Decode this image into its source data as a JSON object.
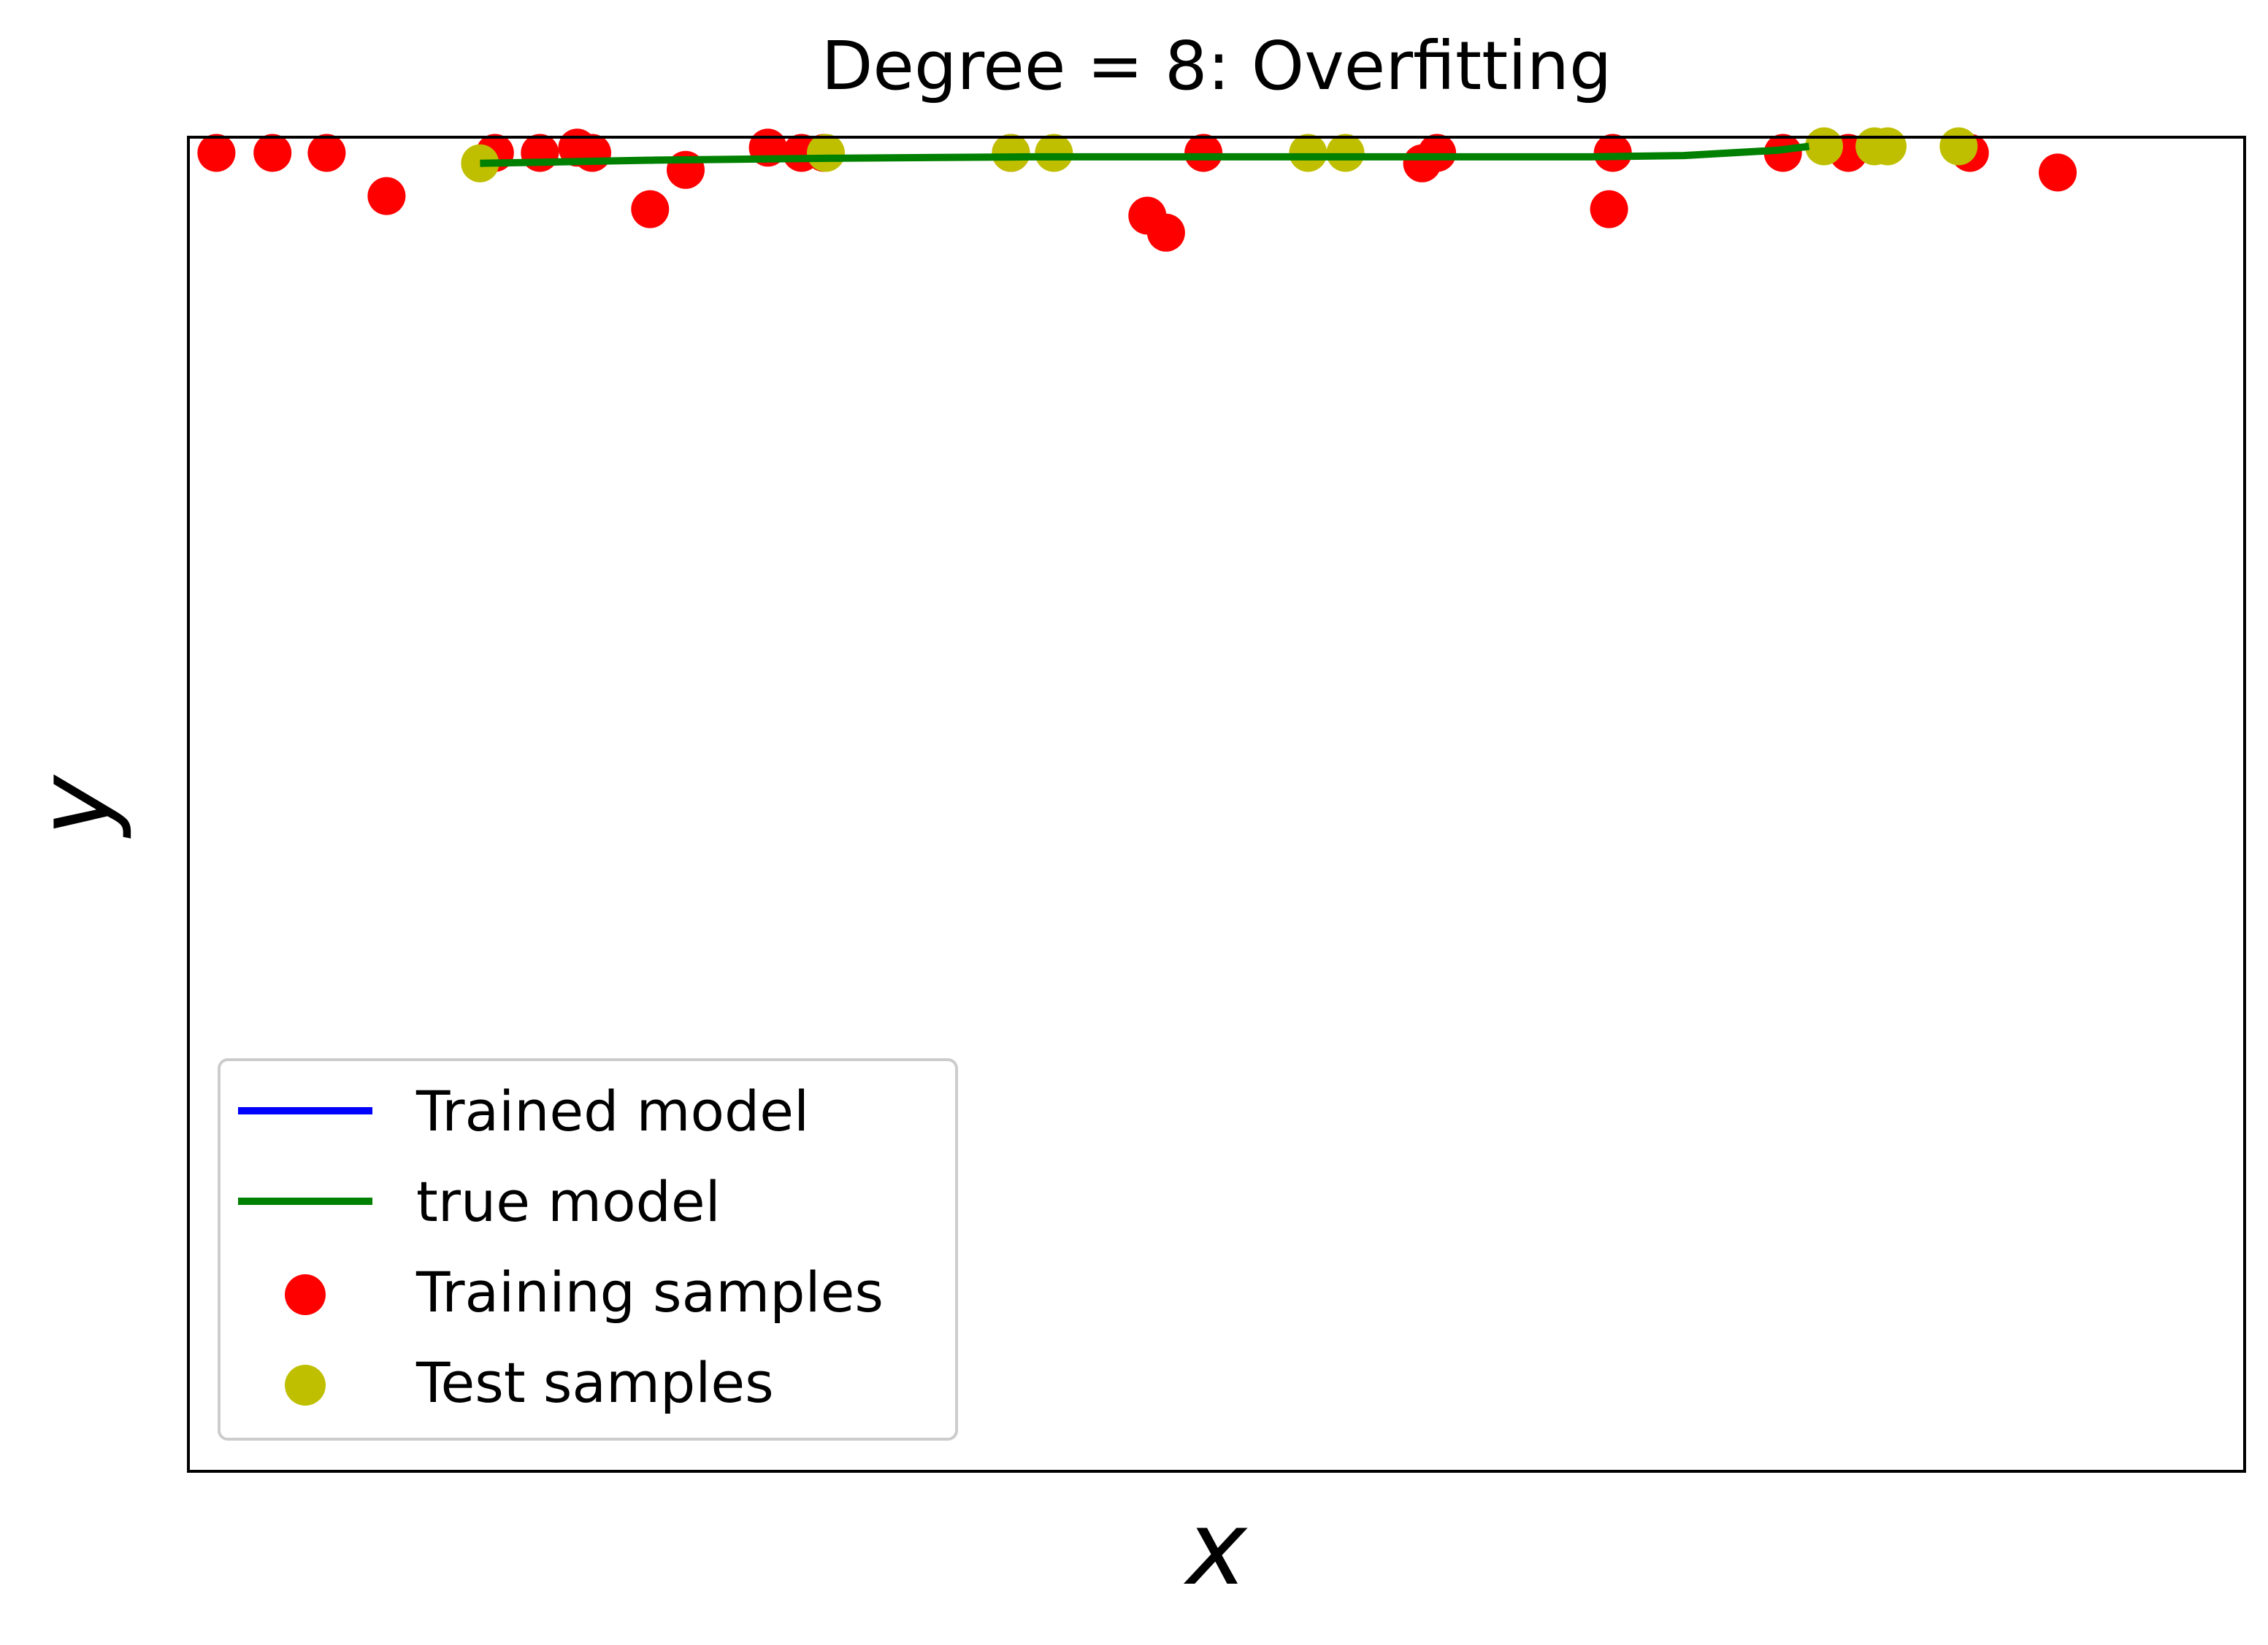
{
  "chart_data": {
    "type": "scatter",
    "title": "Degree = 8: Overfitting",
    "xlabel": "x",
    "ylabel": "y",
    "xlim": [
      0,
      1.1
    ],
    "ylim": [
      -10,
      0.2
    ],
    "xticks": "none",
    "yticks": "none",
    "grid": false,
    "legend_position": "lower-left",
    "colors": {
      "trained_model": "#0000ff",
      "true_model": "#008000",
      "training_samples": "#ff0000",
      "test_samples": "#bfbf00"
    },
    "series": [
      {
        "name": "Trained model",
        "kind": "line",
        "x": [],
        "y": []
      },
      {
        "name": "true model",
        "kind": "line",
        "x": [
          0.156,
          0.25,
          0.35,
          0.45,
          0.55,
          0.65,
          0.75,
          0.8,
          0.85,
          0.867
        ],
        "y": [
          0.0,
          0.025,
          0.04,
          0.05,
          0.05,
          0.05,
          0.05,
          0.06,
          0.1,
          0.13
        ]
      },
      {
        "name": "Training samples",
        "kind": "scatter",
        "x": [
          0.015,
          0.045,
          0.074,
          0.106,
          0.164,
          0.188,
          0.208,
          0.216,
          0.247,
          0.266,
          0.31,
          0.328,
          0.34,
          0.44,
          0.513,
          0.523,
          0.543,
          0.66,
          0.668,
          0.76,
          0.762,
          0.853,
          0.888,
          0.953,
          1.0
        ],
        "y": [
          0.08,
          0.08,
          0.08,
          -0.25,
          0.08,
          0.08,
          0.12,
          0.08,
          -0.35,
          -0.05,
          0.12,
          0.08,
          0.08,
          0.08,
          -0.4,
          -0.53,
          0.08,
          0.0,
          0.08,
          -0.35,
          0.08,
          0.08,
          0.08,
          0.08,
          -0.07
        ]
      },
      {
        "name": "Test samples",
        "kind": "scatter",
        "x": [
          0.156,
          0.341,
          0.44,
          0.463,
          0.599,
          0.619,
          0.875,
          0.902,
          0.909,
          0.947
        ],
        "y": [
          0.0,
          0.08,
          0.08,
          0.08,
          0.08,
          0.08,
          0.13,
          0.13,
          0.13,
          0.13
        ]
      }
    ],
    "legend": [
      {
        "label": "Trained model",
        "marker": "line",
        "color": "#0000ff"
      },
      {
        "label": "true model",
        "marker": "line",
        "color": "#008000"
      },
      {
        "label": "Training samples",
        "marker": "dot",
        "color": "#ff0000"
      },
      {
        "label": "Test samples",
        "marker": "dot",
        "color": "#bfbf00"
      }
    ]
  }
}
